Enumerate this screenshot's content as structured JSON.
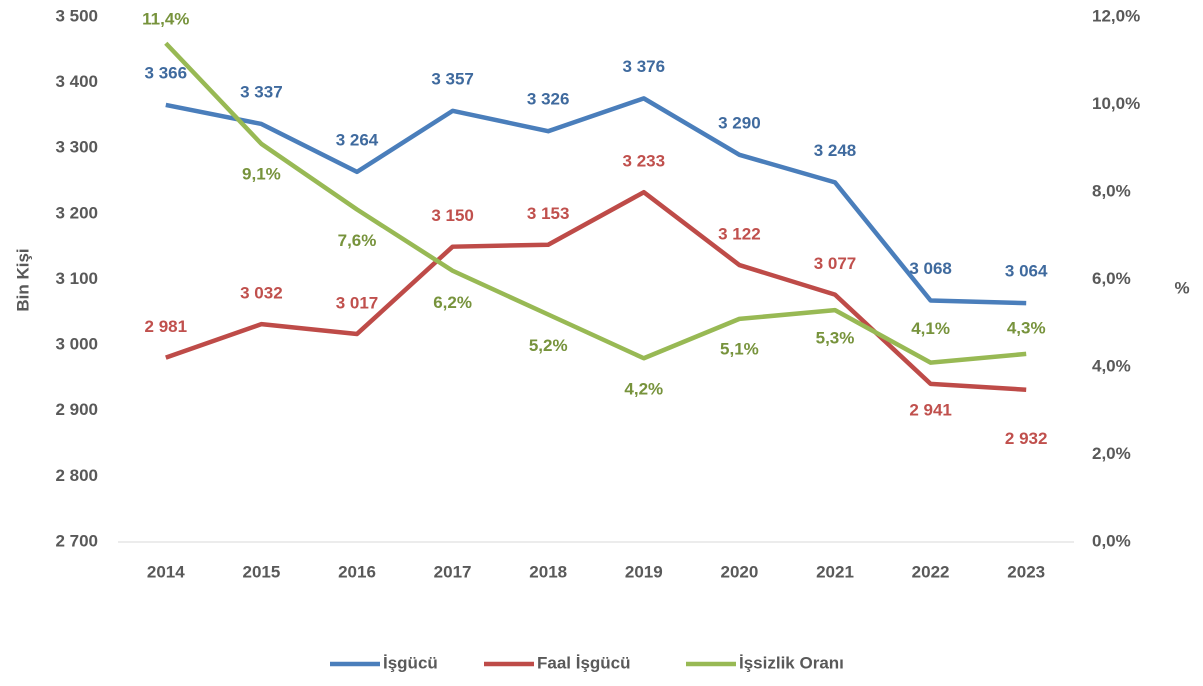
{
  "chart_data": {
    "type": "line",
    "categories": [
      "2014",
      "2015",
      "2016",
      "2017",
      "2018",
      "2019",
      "2020",
      "2021",
      "2022",
      "2023"
    ],
    "y_label": "Bin Kişi",
    "y2_label": "%",
    "ylim": [
      2700,
      3500
    ],
    "yticks": [
      {
        "value": 2700,
        "label": "2 700"
      },
      {
        "value": 2800,
        "label": "2 800"
      },
      {
        "value": 2900,
        "label": "2 900"
      },
      {
        "value": 3000,
        "label": "3 000"
      },
      {
        "value": 3100,
        "label": "3 100"
      },
      {
        "value": 3200,
        "label": "3 200"
      },
      {
        "value": 3300,
        "label": "3 300"
      },
      {
        "value": 3400,
        "label": "3 400"
      },
      {
        "value": 3500,
        "label": "3 500"
      }
    ],
    "y2lim": [
      0,
      12
    ],
    "y2ticks": [
      {
        "value": 0,
        "label": "0,0%"
      },
      {
        "value": 2,
        "label": "2,0%"
      },
      {
        "value": 4,
        "label": "4,0%"
      },
      {
        "value": 6,
        "label": "6,0%"
      },
      {
        "value": 8,
        "label": "8,0%"
      },
      {
        "value": 10,
        "label": "10,0%"
      },
      {
        "value": 12,
        "label": "12,0%"
      }
    ],
    "legend": "bottom",
    "series": [
      {
        "name": "İşgücü",
        "color": "#4a7ebb",
        "label_color": "#3f6a9e",
        "values": [
          3366,
          3337,
          3264,
          3357,
          3326,
          3376,
          3290,
          3248,
          3068,
          3064
        ],
        "value_labels": [
          "3 366",
          "3 337",
          "3 264",
          "3 357",
          "3 326",
          "3 376",
          "3 290",
          "3 248",
          "3 068",
          "3 064"
        ]
      },
      {
        "name": "Faal İşgücü",
        "color": "#be4b48",
        "label_color": "#c0504d",
        "values": [
          2981,
          3032,
          3017,
          3150,
          3153,
          3233,
          3122,
          3077,
          2941,
          2932
        ],
        "value_labels": [
          "2 981",
          "3 032",
          "3 017",
          "3 150",
          "3 153",
          "3 233",
          "3 122",
          "3 077",
          "2 941",
          "2 932"
        ]
      },
      {
        "name": "İşsizlik Oranı",
        "color": "#98b954",
        "label_color": "#77933c",
        "axis": "y2",
        "values": [
          11.4,
          9.1,
          7.6,
          6.2,
          5.2,
          4.2,
          5.1,
          5.3,
          4.1,
          4.3
        ],
        "value_labels": [
          "11,4%",
          "9,1%",
          "7,6%",
          "6,2%",
          "5,2%",
          "4,2%",
          "5,1%",
          "5,3%",
          "4,1%",
          "4,3%"
        ]
      }
    ]
  }
}
